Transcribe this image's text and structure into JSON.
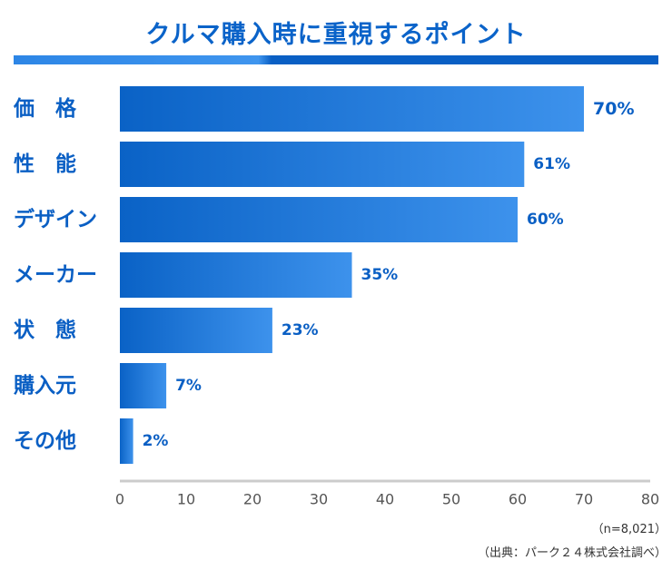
{
  "chart_data": {
    "type": "bar",
    "orientation": "horizontal",
    "title": "クルマ購入時に重視するポイント",
    "categories": [
      "価　格",
      "性　能",
      "デザイン",
      "メーカー",
      "状　態",
      "購入元",
      "その他"
    ],
    "values": [
      70,
      61,
      60,
      35,
      23,
      7,
      2
    ],
    "value_suffix": "%",
    "xlim": [
      0,
      80
    ],
    "xticks": [
      0,
      10,
      20,
      30,
      40,
      50,
      60,
      70,
      80
    ],
    "grid": false,
    "colors": {
      "bar_start": "#0a62c6",
      "bar_end": "#3d92ec",
      "label": "#0a5fc4",
      "axis": "#cccccc",
      "tick_text": "#555555"
    }
  },
  "notes": {
    "sample": "（n=8,021）",
    "source": "（出典：パーク２４株式会社調べ）"
  }
}
